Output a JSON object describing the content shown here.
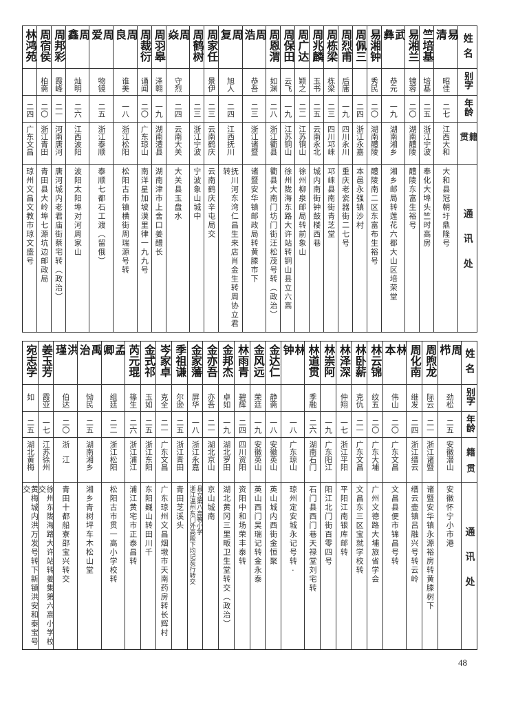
{
  "headers": {
    "name": "姓名",
    "zi": "别字",
    "age": "年龄",
    "native": "籍贯",
    "address": "通讯处"
  },
  "top_table": {
    "rows": [
      {
        "name": "易清",
        "zi": "昭佳",
        "age": "二七",
        "native": "江西大和",
        "address": "大和县冠朝圩鼎隆号"
      },
      {
        "name": "竺培基",
        "zi": "培基",
        "age": "二五",
        "native": "浙江宁波",
        "address": "奉化大埠头竺时高房"
      },
      {
        "name": "易湘兰",
        "zi": "镜蓉",
        "age": "二〇",
        "native": "湖南醴陵",
        "address": "醴陵东富生裕号"
      },
      {
        "name": "武彝",
        "zi": "恭元",
        "age": "一九",
        "native": "湖南湘乡",
        "address": "湘乡邮局转莲花六都大山区培荣堂"
      },
      {
        "name": "易湘钟",
        "zi": "秀民",
        "age": "二〇",
        "native": "湖南醴陵",
        "address": "醴陵南二区东富布生裕号"
      },
      {
        "name": "周佩三",
        "zi": "",
        "age": "二四",
        "native": "浙江永嘉",
        "address": "本邑永强镇沙村"
      },
      {
        "name": "周烈甫",
        "zi": "后庸",
        "age": "一九",
        "native": "四川永川",
        "address": "重庆老瓷器街二七号"
      },
      {
        "name": "周栋梁",
        "zi": "栋梁",
        "age": "二三",
        "native": "四川邛崃",
        "address": "邛崃县南街青芝堂"
      },
      {
        "name": "周兆麟",
        "zi": "玉书",
        "age": "二五",
        "native": "云南永北",
        "address": "城内南街钟鼓楼西巷"
      },
      {
        "name": "周广达",
        "zi": "颖之",
        "age": "二二",
        "native": "江苏铜山",
        "address": "徐州柳泉邮局转前象山"
      },
      {
        "name": "周保田",
        "zi": "云飞",
        "age": "一九",
        "native": "江苏铜山",
        "address": "徐州陇海东路大许站转铜山县立六高"
      },
      {
        "name": "周恩渭",
        "zi": "如渊",
        "age": "二八",
        "native": "浙江衢县",
        "address": "衢县大南门坊门街汪松茂号转（政治）"
      },
      {
        "name": "周浩",
        "zi": "恭吾",
        "age": "二三",
        "native": "浙江诸暨",
        "address": "诸暨安华镇邮政局转黄滕市下"
      },
      {
        "name": "周复",
        "zi": "旭人",
        "age": "二四",
        "native": "江西抚川",
        "address": "抚川河东湾仁昌生来店肖金生转周协立君转"
      },
      {
        "name": "周家任",
        "zi": "景伊",
        "age": "二三",
        "native": "云南鹤庆",
        "address": "云南鹤庆辛屯局交"
      },
      {
        "name": "周鹤树",
        "zi": "",
        "age": "二三",
        "native": "浙江宁波",
        "address": "宁波象山城中"
      },
      {
        "name": "周焱",
        "zi": "守烈",
        "age": "二四",
        "native": "云南大关",
        "address": "大关县玉盘水"
      },
      {
        "name": "周羽皋",
        "zi": "泽翱",
        "age": "一九",
        "native": "湖南澧县",
        "address": "湖南津市上舍口姜醴长"
      },
      {
        "name": "周裁衍",
        "zi": "诵闻",
        "age": "二〇",
        "native": "广东琼山",
        "address": "南洋星加坡漠里律一九九号"
      },
      {
        "name": "周良",
        "zi": "谁美",
        "age": "一八",
        "native": "浙江松阳",
        "address": "松阳古市镇横街周瑞源号转"
      },
      {
        "name": "周爱",
        "zi": "物镜",
        "age": "二五",
        "native": "浙江泰顺",
        "address": "泰顺七都石工渡（留俄）"
      },
      {
        "name": "周鑫",
        "zi": "灿明",
        "age": "二六",
        "native": "江西波阳",
        "address": "波阳太阳埠对河周家山"
      },
      {
        "name": "周邦彩",
        "zi": "霞峰",
        "age": "二一",
        "native": "河南唐河",
        "address": "唐河城内老君庙街蔡宅转（政治）"
      },
      {
        "name": "周宿侯",
        "zi": "柏斋",
        "age": "二〇",
        "native": "浙江青田",
        "address": "青田县大岭埠七源坑边邮政局"
      },
      {
        "name": "林鸿苑",
        "zi": "",
        "age": "二四",
        "native": "广东文昌",
        "address": "琼州文昌文教市琼文盛号"
      }
    ]
  },
  "bottom_table": {
    "rows": [
      {
        "name": "周栉",
        "zi": "劲松",
        "age": "二五",
        "native": "安徽潜山",
        "address": "安徽怀宁小市港"
      },
      {
        "name": "周煦龙",
        "zi": "际云",
        "age": "二一",
        "native": "浙江诸暨",
        "address": "诸暨安华镇永源裕房转黄滕树下"
      },
      {
        "name": "周化南",
        "zi": "继发",
        "age": "二四",
        "native": "浙江缙云",
        "address": "缙云壶镇吕融兴号转云岭"
      },
      {
        "name": "林本",
        "zi": "伟山",
        "age": "二〇",
        "native": "广东文昌",
        "address": "文昌县便市锦昌号转"
      },
      {
        "name": "林云锦",
        "zi": "纹五",
        "age": "二〇",
        "native": "广东大埔",
        "address": "广州文德路大埔旅省学会"
      },
      {
        "name": "林卧薪",
        "zi": "克仇",
        "age": "二一",
        "native": "广东文昌",
        "address": "文昌东三区宝就学校转"
      },
      {
        "name": "林泽深",
        "zi": "仲翔",
        "age": "一七",
        "native": "浙江平阳",
        "address": "平阳江南银库邮转"
      },
      {
        "name": "林崇阿",
        "zi": "",
        "age": "一九",
        "native": "广东阳江",
        "address": "阳江北门街百零四号"
      },
      {
        "name": "林道贯",
        "zi": "季融",
        "age": "二六",
        "native": "湖南石门",
        "address": "石门县西门巷天禄堂刘宅转"
      },
      {
        "name": "林钟",
        "zi": "",
        "age": "一八",
        "native": "广东琼山",
        "address": "琼州定安城永记号转·"
      },
      {
        "name": "金达仁",
        "zi": "静斋",
        "age": "一八",
        "native": "安徽英山",
        "address": "英山城内西街金恒聚"
      },
      {
        "name": "金风远",
        "zi": "荣廷",
        "age": "一九",
        "native": "安徽英山",
        "address": "英山西门吴瑞记转金永泰"
      },
      {
        "name": "林雨青",
        "zi": "碧辉",
        "age": "二四",
        "native": "四川资阳",
        "address": "资阳中和场荣丰泰转"
      },
      {
        "name": "金邦杰",
        "zi": "卓如",
        "age": "一九",
        "native": "湖北罗田",
        "address": "湖北黄冈三里畈卫生堂转交（政治）"
      },
      {
        "name": "金亦吾",
        "zi": "亦吾",
        "age": "二一",
        "native": "湖北京山",
        "address": "京山城南"
      },
      {
        "name": "金家藩",
        "zi": "屏华",
        "age": "一八",
        "native": "浙江永嘉",
        "address": "浙江温州东门外高殿下均记炭行转交",
        "address2": "县立第八高等小学"
      },
      {
        "name": "季祖谦",
        "zi": "尔逊",
        "age": "二五",
        "native": "浙江青田",
        "address": "青田芝溪头"
      },
      {
        "name": "岑家卓",
        "zi": "克全",
        "age": "二一",
        "native": "广东文昌",
        "address": "广东琼州文昌烟墩市天南药房转长辉村"
      },
      {
        "name": "金式祁",
        "zi": "玉如",
        "age": "二五",
        "native": "浙江东阳",
        "address": "东阳巍山转田川千"
      },
      {
        "name": "芮元琨",
        "zi": "篠生",
        "age": "二六",
        "native": "浙江浦江",
        "address": "浦江黄宅市正泰昌转"
      },
      {
        "name": "孟卿",
        "zi": "组廷",
        "age": "二二",
        "native": "浙江松阳",
        "address": "松阳古市贯一高小学校转"
      },
      {
        "name": "禹治",
        "zi": "恸民",
        "age": "二五",
        "native": "湖南湘乡",
        "address": "湘乡青树坪车木松山堂"
      },
      {
        "name": "洪瑾",
        "zi": "伯达",
        "age": "二〇",
        "native": "浙　江",
        "address": "青田十都船寮邵宝兴转交"
      },
      {
        "name": "姜玉芳",
        "zi": "霞亚",
        "age": "一七",
        "native": "江苏徐州",
        "address": "徐州东陇海路大许站转姜集第六高小学校交"
      },
      {
        "name": "宛志学",
        "zi": "如",
        "age": "二五",
        "native": "湖北黄梅",
        "address": "黄梅城内洪万发号转下新镇洪安和泰宝号交"
      }
    ]
  },
  "page_number": "48"
}
